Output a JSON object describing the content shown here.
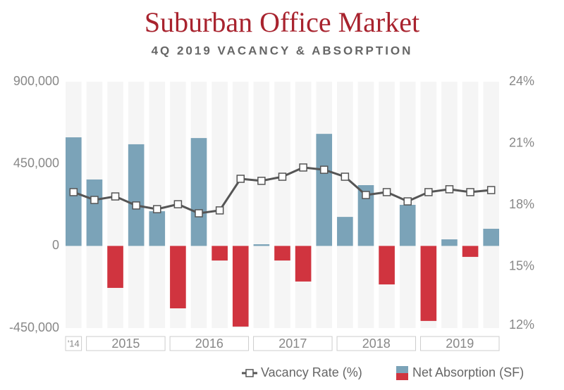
{
  "chart_data": {
    "type": "bar-line",
    "title": "Suburban Office Market",
    "subtitle": "4Q 2019 VACANCY & ABSORPTION",
    "groups": [
      "'14",
      "2015",
      "2016",
      "2017",
      "2018",
      "2019"
    ],
    "series": [
      {
        "name": "Net Absorption (SF)",
        "type": "bar",
        "color": "#7ba3b8",
        "negative_color": "#d0343f",
        "values": [
          595000,
          364000,
          -230000,
          557000,
          190000,
          -342000,
          591000,
          -80000,
          -442000,
          9000,
          -80000,
          -195000,
          614000,
          159000,
          333000,
          -211000,
          225000,
          -411000,
          36000,
          -60000,
          94000
        ]
      },
      {
        "name": "Vacancy Rate (%)",
        "type": "line",
        "axis": "y2",
        "color": "#555555",
        "values": [
          18.62,
          18.24,
          18.41,
          17.97,
          17.79,
          18.03,
          17.59,
          17.73,
          19.27,
          19.17,
          19.37,
          19.82,
          19.71,
          19.37,
          18.48,
          18.62,
          18.17,
          18.62,
          18.76,
          18.62,
          18.72
        ]
      }
    ],
    "ylim": [
      -450000,
      900000
    ],
    "yticks": [
      {
        "value": 900000,
        "label": "900,000"
      },
      {
        "value": 450000,
        "label": "450,000"
      },
      0,
      {
        "value": -450000,
        "label": "-450,000"
      }
    ],
    "y2lim": [
      12,
      24
    ],
    "y2ticks": [
      {
        "value": 24,
        "label": "24%"
      },
      {
        "value": 21,
        "label": "21%"
      },
      {
        "value": 18,
        "label": "18%"
      },
      {
        "value": 15,
        "label": "15%"
      },
      {
        "value": 12,
        "label": "12%"
      }
    ],
    "legend": "bottom-right"
  }
}
